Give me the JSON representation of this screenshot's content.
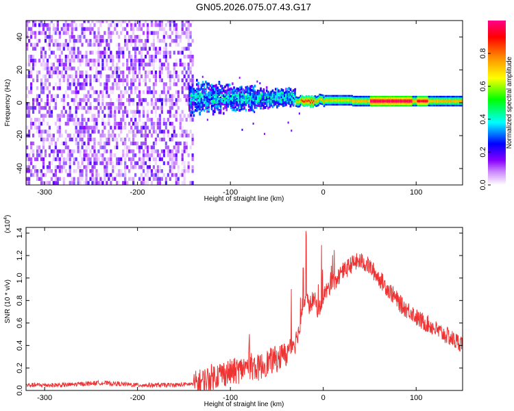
{
  "title": "GN05.2026.075.07.43.G17",
  "chart_data": [
    {
      "type": "heatmap",
      "xlabel": "Height of straight line (km)",
      "ylabel": "Frequency (Hz)",
      "xlim": [
        -320,
        150
      ],
      "ylim": [
        -50,
        50
      ],
      "xticks": [
        -300,
        -200,
        -100,
        0,
        100
      ],
      "yticks": [
        -40,
        -20,
        0,
        20,
        40
      ],
      "colorbar": {
        "label": "Normalized spectral amplitude",
        "range": [
          0,
          1
        ],
        "ticks": [
          0.0,
          0.2,
          0.4,
          0.6,
          0.8
        ]
      },
      "description_regions": [
        {
          "x_range": [
            -320,
            -140
          ],
          "freq_spread": 50,
          "amplitude": [
            0.0,
            0.2
          ]
        },
        {
          "x_range": [
            -145,
            -30
          ],
          "freq_spread": 12,
          "amplitude": [
            0.1,
            0.35
          ]
        },
        {
          "x_range": [
            -30,
            150
          ],
          "freq_center": 1,
          "freq_spread": 2,
          "amplitude": [
            0.4,
            0.95
          ]
        }
      ]
    },
    {
      "type": "line",
      "xlabel": "Height of straight line (km)",
      "ylabel": "SNR (10 * v/v)",
      "y_multiplier": "(x10",
      "y_multiplier_exp": "4",
      "y_multiplier_close": ")",
      "xlim": [
        -320,
        150
      ],
      "ylim": [
        0,
        1.45
      ],
      "xticks": [
        -300,
        -200,
        -100,
        0,
        100
      ],
      "yticks": [
        0.0,
        0.2,
        0.4,
        0.6,
        0.8,
        1.0,
        1.2,
        1.4
      ],
      "series": [
        {
          "color": "#ee3333",
          "x": [
            -320,
            -300,
            -280,
            -260,
            -240,
            -220,
            -200,
            -180,
            -160,
            -140,
            -130,
            -120,
            -110,
            -100,
            -90,
            -80,
            -70,
            -60,
            -50,
            -40,
            -35,
            -30,
            -25,
            -22,
            -20,
            -15,
            -10,
            -5,
            0,
            5,
            10,
            15,
            20,
            25,
            30,
            35,
            40,
            45,
            50,
            55,
            60,
            65,
            70,
            75,
            80,
            85,
            90,
            95,
            100,
            105,
            110,
            115,
            120,
            125,
            130,
            135,
            140,
            145,
            150
          ],
          "y": [
            0.04,
            0.04,
            0.04,
            0.05,
            0.06,
            0.05,
            0.04,
            0.04,
            0.04,
            0.05,
            0.08,
            0.12,
            0.15,
            0.16,
            0.18,
            0.22,
            0.2,
            0.25,
            0.28,
            0.32,
            0.4,
            0.45,
            0.55,
            0.75,
            0.82,
            0.75,
            0.82,
            0.7,
            0.85,
            0.9,
            0.95,
            1.0,
            1.05,
            1.08,
            1.12,
            1.14,
            1.15,
            1.13,
            1.1,
            1.05,
            1.0,
            0.95,
            0.9,
            0.85,
            0.8,
            0.75,
            0.72,
            0.7,
            0.65,
            0.62,
            0.6,
            0.58,
            0.55,
            0.52,
            0.5,
            0.48,
            0.45,
            0.43,
            0.42
          ]
        }
      ]
    }
  ],
  "colors": {
    "line": "#ee3333",
    "frame": "#000000"
  }
}
